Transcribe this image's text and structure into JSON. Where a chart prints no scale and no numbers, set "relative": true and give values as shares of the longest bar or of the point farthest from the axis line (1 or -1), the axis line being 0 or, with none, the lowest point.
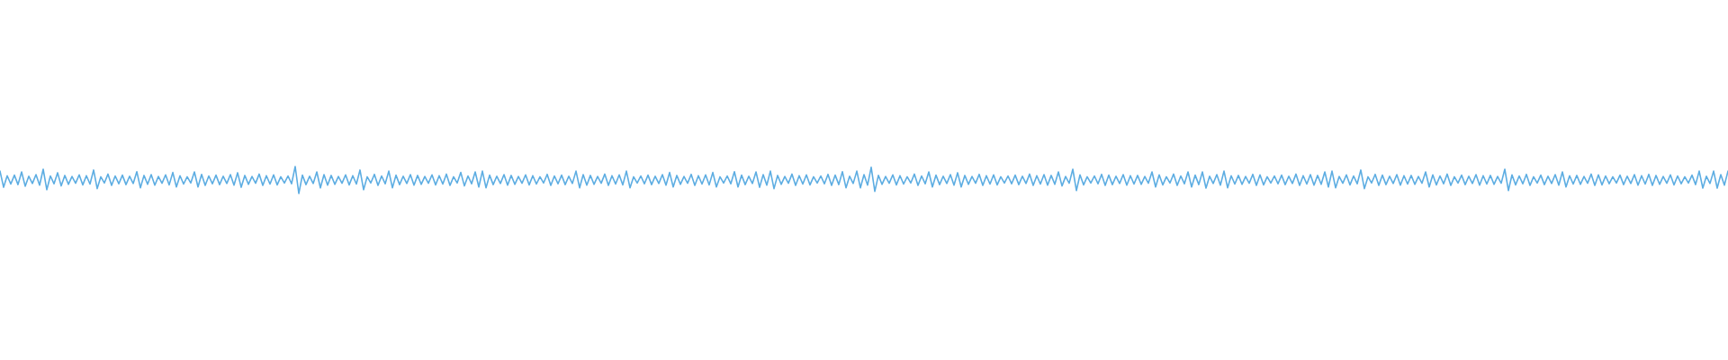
{
  "chart_data": {
    "type": "line",
    "relative": true,
    "categories": [
      null,
      null,
      null,
      null,
      null,
      null,
      null,
      null,
      null,
      null,
      null,
      null,
      null,
      null,
      null,
      null,
      null,
      null,
      null,
      null,
      null,
      null,
      null,
      null,
      null,
      null,
      null,
      null,
      null,
      null,
      null,
      null,
      null,
      null,
      null,
      null,
      null,
      null,
      null,
      null,
      null,
      null,
      null,
      null,
      null,
      null,
      null,
      null,
      null,
      null,
      null,
      null,
      null,
      null,
      null,
      null,
      null,
      null,
      null,
      null,
      null,
      null,
      null,
      null,
      null,
      null,
      null,
      null,
      null,
      null,
      null,
      null,
      null,
      null,
      null,
      null,
      null,
      null,
      null,
      null,
      null,
      null,
      null,
      null,
      null,
      null,
      null,
      null,
      null,
      null,
      null,
      null,
      null,
      null,
      null,
      null,
      null,
      null,
      null,
      null,
      null,
      null,
      null,
      null,
      null,
      null,
      null,
      null,
      null,
      null,
      null,
      null,
      null,
      null,
      null,
      null,
      null,
      null,
      null,
      null,
      null,
      null,
      null,
      null,
      null,
      null,
      null,
      null,
      null,
      null,
      null,
      null,
      null,
      null,
      null,
      null,
      null,
      null,
      null,
      null,
      null,
      null,
      null,
      null,
      null,
      null,
      null,
      null,
      null,
      null,
      null,
      null,
      null,
      null,
      null,
      null,
      null,
      null,
      null,
      null,
      null,
      null,
      null,
      null,
      null,
      null,
      null,
      null,
      null,
      null,
      null,
      null,
      null,
      null,
      null,
      null,
      null,
      null,
      null,
      null,
      null,
      null,
      null,
      null,
      null,
      null,
      null,
      null,
      null,
      null,
      null,
      null,
      null,
      null,
      null,
      null,
      null,
      null,
      null,
      null,
      null,
      null,
      null,
      null,
      null,
      null,
      null,
      null,
      null,
      null,
      null,
      null,
      null,
      null,
      null,
      null,
      null,
      null,
      null,
      null,
      null,
      null,
      null,
      null,
      null,
      null,
      null,
      null,
      null,
      null,
      null,
      null,
      null,
      null,
      null,
      null,
      null,
      null,
      null,
      null,
      null,
      null,
      null,
      null,
      null,
      null,
      null,
      null,
      null,
      null,
      null,
      null,
      null,
      null,
      null,
      null,
      null,
      null,
      null,
      null,
      null,
      null,
      null,
      null,
      null,
      null,
      null,
      null,
      null,
      null,
      null,
      null,
      null,
      null,
      null,
      null,
      null,
      null,
      null,
      null,
      null,
      null,
      null,
      null,
      null,
      null,
      null,
      null,
      null,
      null,
      null,
      null,
      null,
      null,
      null,
      null,
      null,
      null,
      null,
      null,
      null,
      null,
      null,
      null,
      null,
      null,
      null,
      null,
      null,
      null,
      null,
      null,
      null,
      null,
      null,
      null,
      null,
      null,
      null,
      null,
      null,
      null,
      null,
      null,
      null,
      null,
      null,
      null,
      null,
      null,
      null,
      null,
      null,
      null,
      null,
      null,
      null,
      null,
      null,
      null,
      null,
      null,
      null,
      null,
      null,
      null,
      null,
      null,
      null,
      null,
      null,
      null,
      null,
      null,
      null,
      null,
      null,
      null,
      null,
      null,
      null,
      null,
      null,
      null,
      null,
      null,
      null,
      null,
      null,
      null,
      null,
      null,
      null,
      null,
      null,
      null,
      null,
      null,
      null,
      null,
      null,
      null,
      null,
      null,
      null,
      null,
      null,
      null,
      null,
      null,
      null,
      null,
      null,
      null,
      null,
      null,
      null,
      null,
      null,
      null,
      null,
      null,
      null,
      null,
      null,
      null,
      null,
      null,
      null,
      null,
      null,
      null,
      null,
      null,
      null,
      null,
      null,
      null,
      null,
      null,
      null,
      null,
      null,
      null,
      null,
      null,
      null,
      null,
      null,
      null,
      null,
      null,
      null,
      null,
      null,
      null,
      null,
      null,
      null,
      null,
      null,
      null,
      null,
      null,
      null,
      null,
      null,
      null,
      null,
      null,
      null,
      null,
      null,
      null,
      null,
      null,
      null,
      null,
      null,
      null,
      null,
      null,
      null,
      null,
      null,
      null,
      null,
      null,
      null,
      null,
      null,
      null,
      null,
      null,
      null,
      null,
      null,
      null,
      null,
      null,
      null
    ],
    "series": [
      {
        "color": "#5dade2",
        "values": [
          0.83,
          0.23,
          0.66,
          0.35,
          0.68,
          0.33,
          0.8,
          0.27,
          0.64,
          0.37,
          0.7,
          0.31,
          0.9,
          0.14,
          0.65,
          0.36,
          0.77,
          0.28,
          0.67,
          0.34,
          0.63,
          0.38,
          0.69,
          0.32,
          0.66,
          0.35,
          0.87,
          0.18,
          0.62,
          0.39,
          0.72,
          0.3,
          0.65,
          0.36,
          0.68,
          0.33,
          0.64,
          0.37,
          0.81,
          0.21,
          0.67,
          0.34,
          0.7,
          0.31,
          0.63,
          0.38,
          0.69,
          0.32,
          0.78,
          0.24,
          0.66,
          0.35,
          0.62,
          0.39,
          0.8,
          0.24,
          0.71,
          0.3,
          0.65,
          0.36,
          0.68,
          0.33,
          0.64,
          0.37,
          0.7,
          0.31,
          0.77,
          0.23,
          0.67,
          0.34,
          0.63,
          0.38,
          0.72,
          0.3,
          0.66,
          0.35,
          0.69,
          0.32,
          0.62,
          0.39,
          0.65,
          0.36,
          1,
          0,
          0.68,
          0.33,
          0.64,
          0.37,
          0.8,
          0.21,
          0.7,
          0.31,
          0.67,
          0.34,
          0.63,
          0.38,
          0.69,
          0.32,
          0.66,
          0.35,
          0.87,
          0.14,
          0.62,
          0.39,
          0.71,
          0.3,
          0.65,
          0.36,
          0.83,
          0.21,
          0.68,
          0.33,
          0.64,
          0.37,
          0.7,
          0.31,
          0.67,
          0.34,
          0.63,
          0.38,
          0.69,
          0.32,
          0.66,
          0.35,
          0.72,
          0.3,
          0.62,
          0.39,
          0.78,
          0.28,
          0.65,
          0.36,
          0.8,
          0.24,
          0.83,
          0.21,
          0.68,
          0.33,
          0.64,
          0.37,
          0.7,
          0.31,
          0.67,
          0.34,
          0.63,
          0.38,
          0.69,
          0.32,
          0.66,
          0.35,
          0.62,
          0.39,
          0.71,
          0.3,
          0.65,
          0.36,
          0.68,
          0.33,
          0.64,
          0.37,
          0.83,
          0.21,
          0.7,
          0.31,
          0.67,
          0.34,
          0.63,
          0.38,
          0.72,
          0.3,
          0.66,
          0.35,
          0.69,
          0.32,
          0.83,
          0.21,
          0.62,
          0.39,
          0.65,
          0.36,
          0.68,
          0.33,
          0.64,
          0.37,
          0.7,
          0.31,
          0.78,
          0.24,
          0.67,
          0.34,
          0.63,
          0.38,
          0.71,
          0.3,
          0.66,
          0.35,
          0.69,
          0.32,
          0.78,
          0.24,
          0.62,
          0.39,
          0.65,
          0.36,
          0.81,
          0.24,
          0.68,
          0.33,
          0.64,
          0.37,
          0.8,
          0.23,
          0.7,
          0.31,
          0.83,
          0.18,
          0.67,
          0.34,
          0.63,
          0.38,
          0.72,
          0.3,
          0.66,
          0.35,
          0.69,
          0.32,
          0.62,
          0.39,
          0.65,
          0.36,
          0.71,
          0.3,
          0.68,
          0.33,
          0.81,
          0.21,
          0.64,
          0.37,
          0.83,
          0.21,
          0.7,
          0.31,
          0.97,
          0.08,
          0.67,
          0.34,
          0.63,
          0.38,
          0.69,
          0.32,
          0.66,
          0.35,
          0.62,
          0.39,
          0.72,
          0.3,
          0.65,
          0.36,
          0.8,
          0.24,
          0.68,
          0.33,
          0.64,
          0.37,
          0.7,
          0.31,
          0.77,
          0.24,
          0.67,
          0.34,
          0.63,
          0.38,
          0.71,
          0.3,
          0.66,
          0.35,
          0.69,
          0.32,
          0.62,
          0.39,
          0.65,
          0.36,
          0.68,
          0.33,
          0.64,
          0.37,
          0.72,
          0.3,
          0.66,
          0.35,
          0.7,
          0.31,
          0.67,
          0.34,
          0.8,
          0.28,
          0.63,
          0.38,
          0.9,
          0.11,
          0.69,
          0.32,
          0.62,
          0.39,
          0.65,
          0.36,
          0.71,
          0.3,
          0.68,
          0.33,
          0.64,
          0.37,
          0.7,
          0.31,
          0.66,
          0.35,
          0.67,
          0.34,
          0.63,
          0.38,
          0.8,
          0.24,
          0.69,
          0.32,
          0.62,
          0.39,
          0.72,
          0.3,
          0.65,
          0.36,
          0.8,
          0.24,
          0.68,
          0.33,
          0.8,
          0.2,
          0.64,
          0.37,
          0.7,
          0.31,
          0.83,
          0.21,
          0.66,
          0.35,
          0.67,
          0.34,
          0.63,
          0.38,
          0.71,
          0.3,
          0.69,
          0.32,
          0.62,
          0.39,
          0.65,
          0.36,
          0.68,
          0.33,
          0.64,
          0.37,
          0.72,
          0.3,
          0.66,
          0.35,
          0.7,
          0.31,
          0.67,
          0.34,
          0.8,
          0.24,
          0.83,
          0.21,
          0.63,
          0.38,
          0.69,
          0.32,
          0.65,
          0.36,
          0.87,
          0.18,
          0.62,
          0.39,
          0.71,
          0.3,
          0.68,
          0.33,
          0.64,
          0.37,
          0.7,
          0.31,
          0.66,
          0.35,
          0.67,
          0.34,
          0.63,
          0.38,
          0.8,
          0.24,
          0.69,
          0.32,
          0.65,
          0.36,
          0.72,
          0.3,
          0.62,
          0.39,
          0.68,
          0.33,
          0.64,
          0.37,
          0.7,
          0.31,
          0.66,
          0.35,
          0.67,
          0.34,
          0.63,
          0.38,
          0.9,
          0.11,
          0.69,
          0.32,
          0.65,
          0.36,
          0.71,
          0.3,
          0.62,
          0.39,
          0.68,
          0.33,
          0.64,
          0.37,
          0.7,
          0.31,
          0.8,
          0.24,
          0.66,
          0.35,
          0.67,
          0.34,
          0.63,
          0.38,
          0.72,
          0.3,
          0.69,
          0.32,
          0.65,
          0.36,
          0.62,
          0.39,
          0.68,
          0.33,
          0.64,
          0.37,
          0.7,
          0.31,
          0.66,
          0.35,
          0.71,
          0.3,
          0.67,
          0.34,
          0.63,
          0.38,
          0.69,
          0.32,
          0.65,
          0.36,
          0.62,
          0.39,
          0.68,
          0.33,
          0.83,
          0.2,
          0.64,
          0.37,
          0.83,
          0.2,
          0.7,
          0.31,
          0.83
        ]
      }
    ]
  }
}
